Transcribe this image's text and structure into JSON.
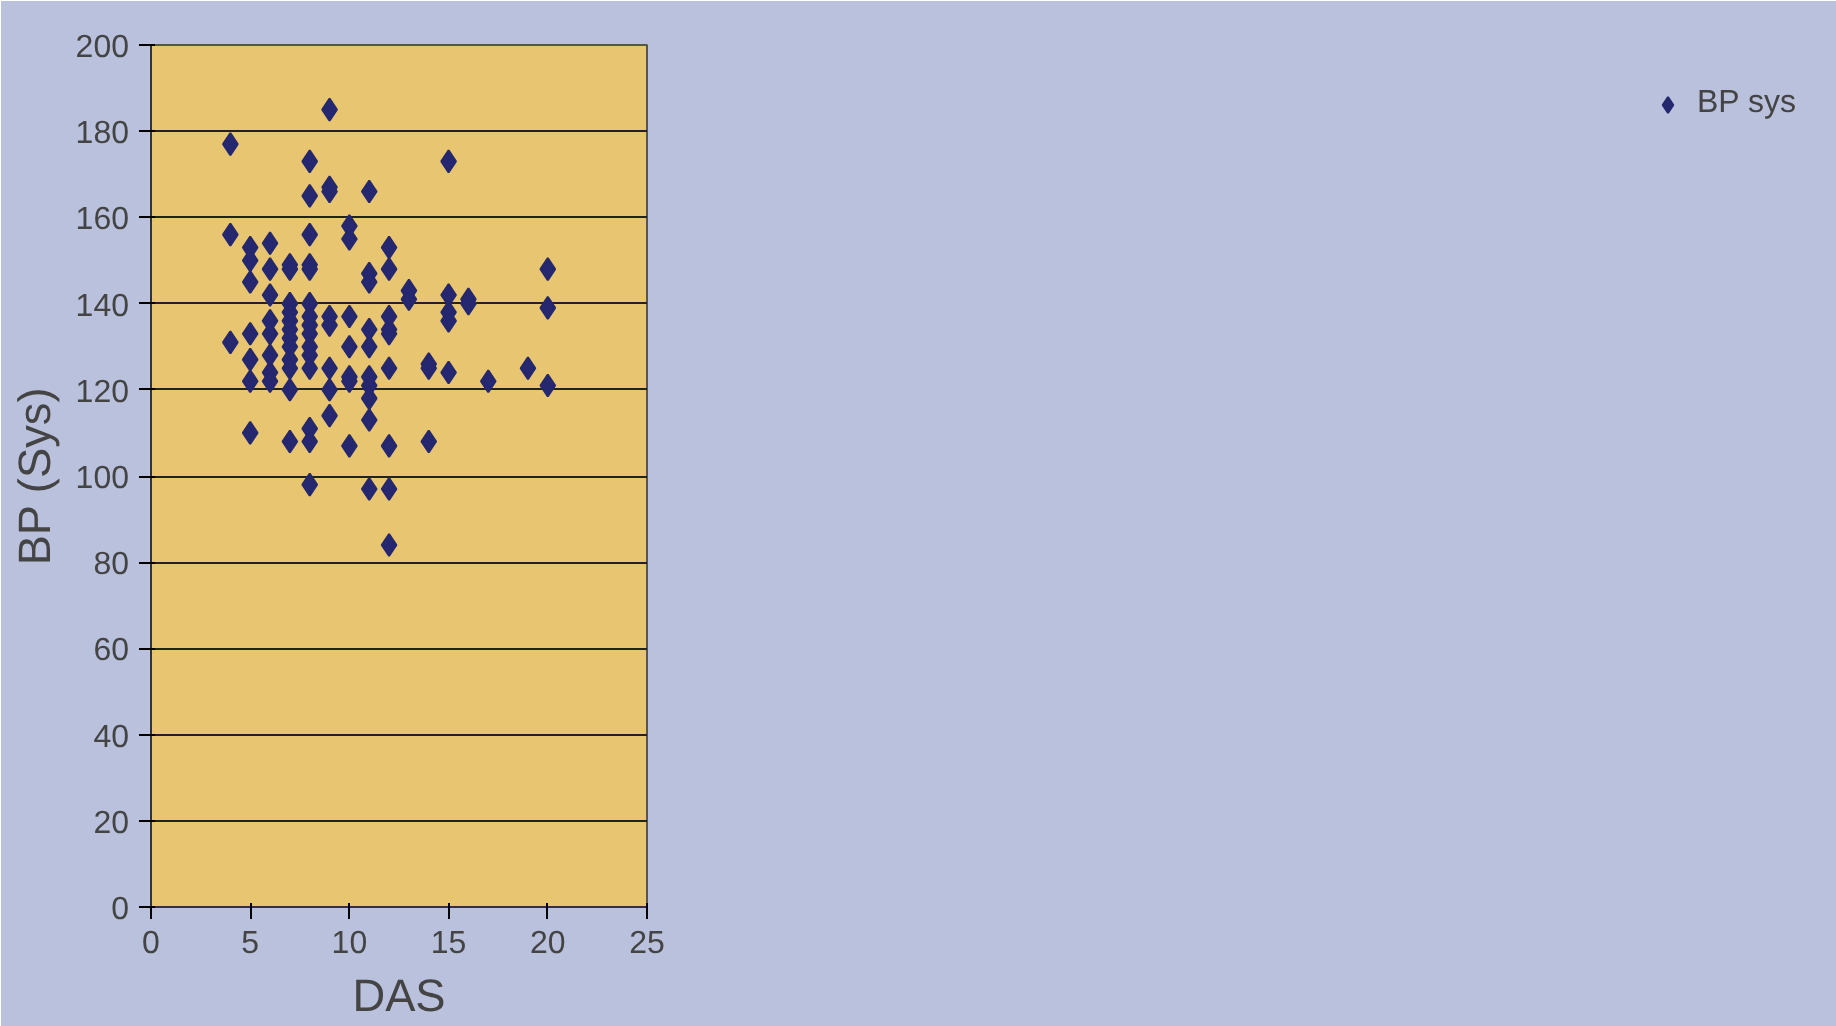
{
  "chart_data": {
    "type": "scatter",
    "xlabel": "DAS",
    "ylabel": "BP (Sys)",
    "xlim": [
      0,
      25
    ],
    "xticks": [
      0,
      5,
      10,
      15,
      20,
      25
    ],
    "ylim": [
      0,
      200
    ],
    "yticks": [
      0,
      20,
      40,
      60,
      80,
      100,
      120,
      140,
      160,
      180,
      200
    ],
    "grid": "y",
    "legend": "right",
    "marker": "diamond",
    "series": [
      {
        "name": "BP sys",
        "color": "#25276f",
        "x": [
          4,
          4,
          4,
          5,
          5,
          5,
          5,
          5,
          5,
          5,
          6,
          6,
          6,
          6,
          6,
          6,
          6,
          6,
          7,
          7,
          7,
          7,
          7,
          7,
          7,
          7,
          7,
          7,
          7,
          7,
          8,
          8,
          8,
          8,
          8,
          8,
          8,
          8,
          8,
          8,
          8,
          8,
          8,
          8,
          8,
          9,
          9,
          9,
          9,
          9,
          9,
          9,
          9,
          10,
          10,
          10,
          10,
          10,
          10,
          10,
          11,
          11,
          11,
          11,
          11,
          11,
          11,
          11,
          11,
          11,
          12,
          12,
          12,
          12,
          12,
          12,
          12,
          12,
          12,
          13,
          13,
          14,
          14,
          14,
          15,
          15,
          15,
          15,
          15,
          16,
          16,
          17,
          19,
          20,
          20,
          20
        ],
        "values": [
          177,
          156,
          131,
          153,
          150,
          145,
          133,
          127,
          122,
          110,
          154,
          148,
          142,
          136,
          133,
          128,
          124,
          122,
          149,
          148,
          140,
          138,
          136,
          134,
          132,
          130,
          127,
          125,
          120,
          108,
          173,
          165,
          156,
          149,
          148,
          140,
          137,
          135,
          133,
          130,
          128,
          125,
          111,
          108,
          98,
          185,
          167,
          166,
          137,
          135,
          125,
          120,
          114,
          158,
          155,
          137,
          130,
          123,
          122,
          107,
          166,
          147,
          145,
          134,
          130,
          123,
          121,
          118,
          113,
          97,
          153,
          148,
          137,
          134,
          133,
          125,
          107,
          97,
          84,
          143,
          141,
          126,
          125,
          108,
          173,
          142,
          138,
          136,
          124,
          141,
          140,
          122,
          125,
          148,
          139,
          121
        ]
      }
    ]
  }
}
